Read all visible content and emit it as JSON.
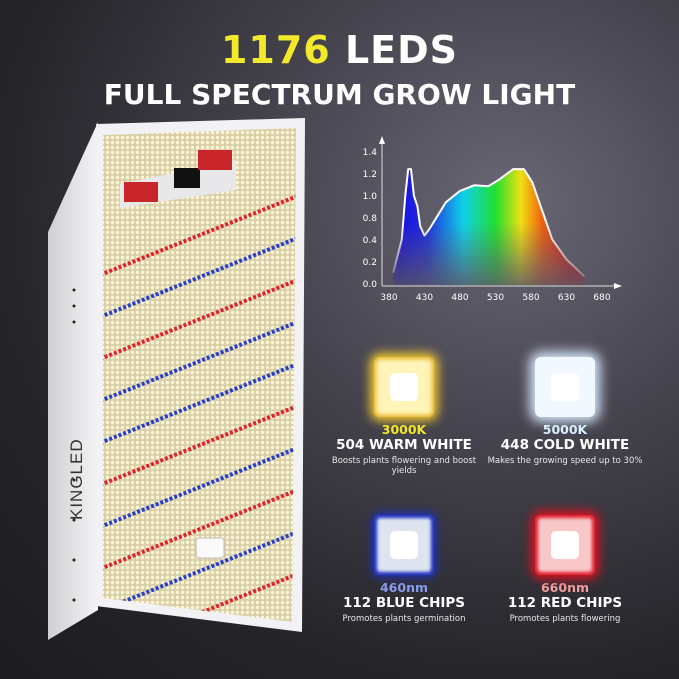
{
  "header": {
    "count": "1176",
    "title_rest": " LEDS",
    "subtitle": "FULL SPECTRUM GROW LIGHT"
  },
  "brand": "KINGLED",
  "colors": {
    "accent_yellow": "#f2e92a",
    "warm": "#f4d23a",
    "cold": "#e8f4ff",
    "blue": "#2a3fc8",
    "red": "#e0222c"
  },
  "chart_data": {
    "type": "area",
    "title": "",
    "xlabel": "",
    "ylabel": "",
    "x_ticks": [
      "380",
      "430",
      "480",
      "530",
      "580",
      "630",
      "680"
    ],
    "y_ticks": [
      "1.4",
      "1.2",
      "1.0",
      "0.8",
      "0.4",
      "0.2",
      "0.0"
    ],
    "xlim": [
      380,
      680
    ],
    "ylim": [
      0,
      1.4
    ],
    "grid": false,
    "x": [
      386,
      398,
      403,
      407,
      411,
      415,
      420,
      424,
      430,
      437,
      460,
      480,
      500,
      520,
      535,
      555,
      570,
      582,
      595,
      610,
      630,
      655
    ],
    "values": [
      0.13,
      0.48,
      0.94,
      1.22,
      1.22,
      0.94,
      0.83,
      0.62,
      0.52,
      0.59,
      0.87,
      0.99,
      1.05,
      1.04,
      1.11,
      1.22,
      1.22,
      1.08,
      0.8,
      0.48,
      0.27,
      0.09
    ]
  },
  "chips": [
    {
      "label": "3000K",
      "name": "504 WARM WHITE",
      "desc": "Boosts plants flowering and boost yields",
      "color": "#f2e92a"
    },
    {
      "label": "5000K",
      "name": "448 COLD WHITE",
      "desc": "Makes the growing speed up to 30%",
      "color": "#d8f0ff"
    },
    {
      "label": "460nm",
      "name": "112 BLUE CHIPS",
      "desc": "Promotes plants germination",
      "color": "#8a9cf0"
    },
    {
      "label": "660nm",
      "name": "112 RED CHIPS",
      "desc": "Promotes plants flowering",
      "color": "#f3a0a0"
    }
  ]
}
